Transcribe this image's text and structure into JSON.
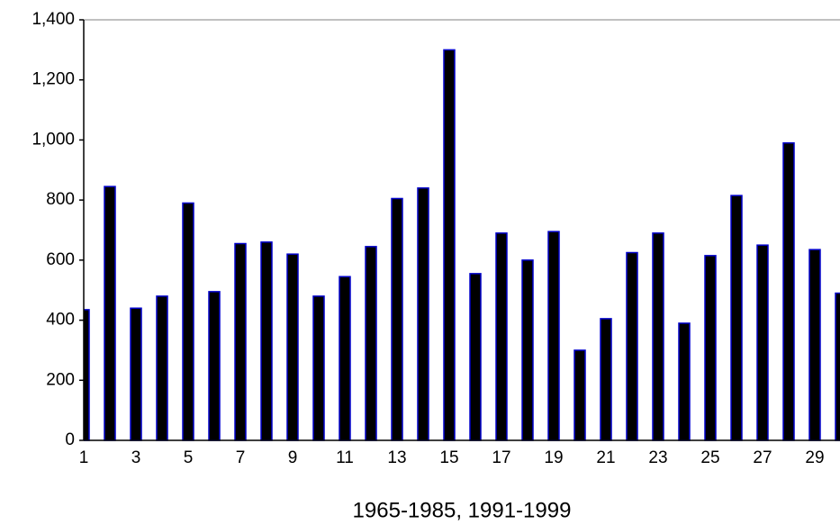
{
  "chart_data": {
    "type": "bar",
    "xlabel": "1965-1985, 1991-1999",
    "categories": [
      "1",
      null,
      "3",
      null,
      "5",
      null,
      "7",
      null,
      "9",
      null,
      "11",
      null,
      "13",
      null,
      "15",
      null,
      "17",
      null,
      "19",
      null,
      "21",
      null,
      "23",
      null,
      "25",
      null,
      "27",
      null,
      "29",
      null
    ],
    "values": [
      435,
      845,
      440,
      480,
      790,
      495,
      655,
      660,
      620,
      480,
      545,
      645,
      805,
      840,
      1300,
      555,
      690,
      600,
      695,
      300,
      405,
      625,
      690,
      390,
      615,
      815,
      650,
      990,
      635,
      490
    ],
    "color": "#000000",
    "edgecolor": "#0000cc",
    "ylim": [
      0,
      1400
    ],
    "yticks": [
      0,
      200,
      400,
      600,
      800,
      {
        "value": 1000,
        "label": "1,000"
      },
      {
        "value": 1200,
        "label": "1,200"
      },
      {
        "value": 1400,
        "label": "1,400"
      }
    ],
    "grid": false
  }
}
